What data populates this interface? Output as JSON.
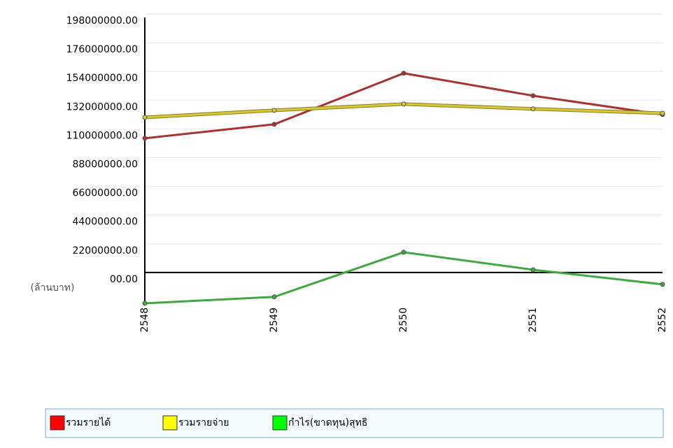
{
  "chart_data": {
    "type": "line",
    "y_unit_label": "(ล้านบาท)",
    "categories": [
      "2548",
      "2549",
      "2550",
      "2551",
      "2552"
    ],
    "series": [
      {
        "name": "รวมรายได้",
        "color": "#ff0000",
        "line_color": "#a83232",
        "values": [
          102800000,
          113500000,
          152600000,
          135400000,
          121000000
        ]
      },
      {
        "name": "รวมรายจ่าย",
        "color": "#ffff00",
        "line_color": "#d8c838",
        "values": [
          118800000,
          124200000,
          129000000,
          125300000,
          122000000
        ]
      },
      {
        "name": "กำไร(ขาดทุน)สุทธิ",
        "color": "#00ff00",
        "line_color": "#3fa83f",
        "values": [
          -23600000,
          -18700000,
          15500000,
          2100000,
          -9100000
        ]
      }
    ],
    "ylim": [
      -24000000,
      198000000
    ],
    "yticks": [
      {
        "value": 0,
        "label": "00.00"
      },
      {
        "value": 22000000,
        "label": "22000000.00"
      },
      {
        "value": 44000000,
        "label": "44000000.00"
      },
      {
        "value": 66000000,
        "label": "66000000.00"
      },
      {
        "value": 88000000,
        "label": "88000000.00"
      },
      {
        "value": 110000000,
        "label": "110000000.00"
      },
      {
        "value": 132000000,
        "label": "132000000.00"
      },
      {
        "value": 154000000,
        "label": "154000000.00"
      },
      {
        "value": 176000000,
        "label": "176000000.00"
      },
      {
        "value": 198000000,
        "label": "198000000.00"
      }
    ],
    "grid": true
  }
}
